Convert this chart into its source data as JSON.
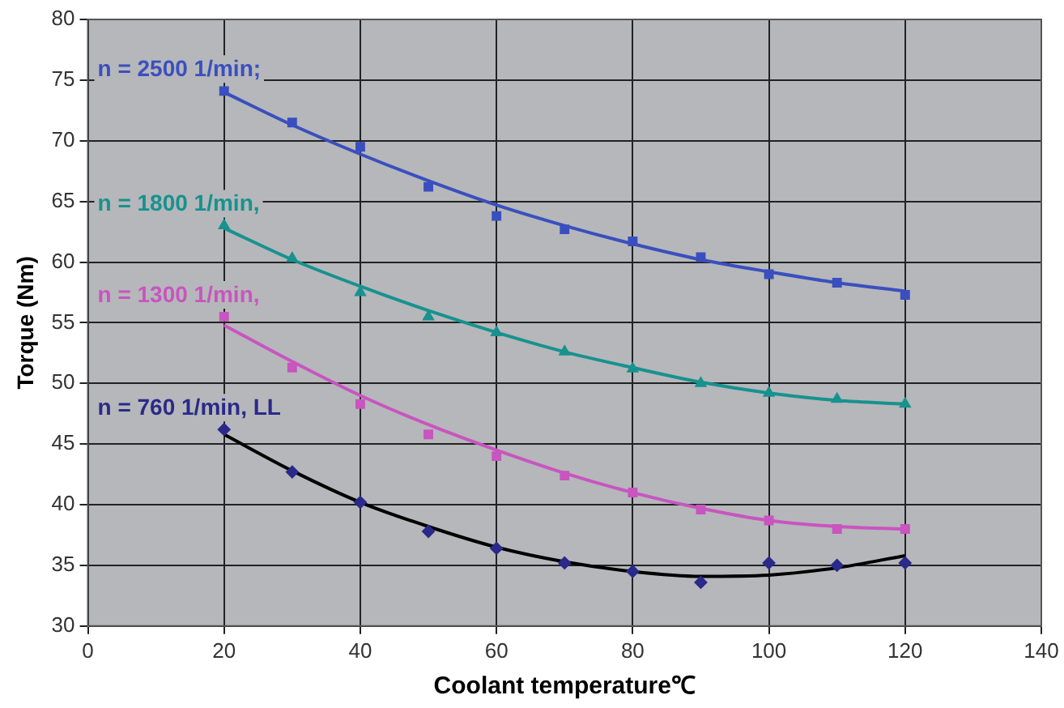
{
  "chart_data": {
    "type": "scatter",
    "xlabel": "Coolant temperature℃",
    "ylabel": "Torque (Nm)",
    "x": [
      20,
      30,
      40,
      50,
      60,
      70,
      80,
      90,
      100,
      110,
      120
    ],
    "xlim": [
      0,
      140
    ],
    "xticks": [
      0,
      20,
      40,
      60,
      80,
      100,
      120,
      140
    ],
    "ylim": [
      30,
      80
    ],
    "yticks": [
      30,
      35,
      40,
      45,
      50,
      55,
      60,
      65,
      70,
      75,
      80
    ],
    "grid": true,
    "legend": false,
    "series": [
      {
        "name": "n = 2500 1/min;",
        "type": "scatter",
        "marker": "square",
        "color": "#3a4fbf",
        "values": [
          74.1,
          71.5,
          69.5,
          66.2,
          63.8,
          62.7,
          61.7,
          60.4,
          59.0,
          58.3,
          57.3
        ]
      },
      {
        "name": "n = 1800 1/min,",
        "type": "scatter",
        "marker": "triangle",
        "color": "#17928f",
        "values": [
          63.0,
          60.3,
          57.5,
          55.5,
          54.2,
          52.6,
          51.2,
          50.0,
          49.2,
          48.7,
          48.3
        ]
      },
      {
        "name": "n = 1300 1/min,",
        "type": "scatter",
        "marker": "square",
        "color": "#c855c0",
        "values": [
          55.5,
          51.3,
          48.3,
          45.8,
          44.0,
          42.4,
          41.0,
          39.6,
          38.7,
          38.0,
          38.0
        ]
      },
      {
        "name": "n = 760 1/min, LL",
        "type": "scatter",
        "marker": "diamond",
        "color": "#2a2a8a",
        "values": [
          46.2,
          42.7,
          40.2,
          37.8,
          36.4,
          35.2,
          34.5,
          33.6,
          35.2,
          35.0,
          35.2
        ]
      },
      {
        "type": "line",
        "marker": "none",
        "color": "#3a4fbf",
        "values": [
          74.0,
          71.3,
          68.9,
          66.7,
          64.7,
          63.0,
          61.5,
          60.2,
          59.2,
          58.3,
          57.6
        ]
      },
      {
        "type": "line",
        "marker": "none",
        "color": "#17928f",
        "values": [
          62.8,
          60.2,
          58.0,
          56.0,
          54.2,
          52.6,
          51.3,
          50.1,
          49.2,
          48.6,
          48.3
        ]
      },
      {
        "type": "line",
        "marker": "none",
        "color": "#c855c0",
        "values": [
          54.8,
          51.8,
          49.0,
          46.6,
          44.5,
          42.6,
          41.0,
          39.7,
          38.7,
          38.2,
          38.0
        ]
      },
      {
        "type": "line",
        "marker": "none",
        "color": "#000000",
        "values": [
          45.8,
          42.8,
          40.2,
          38.2,
          36.5,
          35.3,
          34.5,
          34.1,
          34.2,
          34.8,
          35.8
        ]
      }
    ]
  }
}
